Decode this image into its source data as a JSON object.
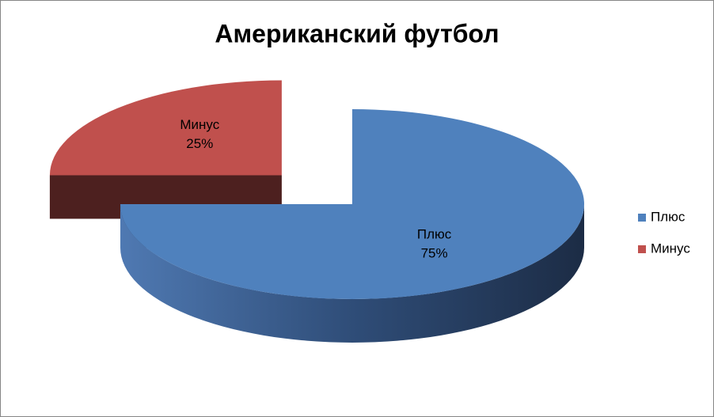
{
  "chart_data": {
    "type": "pie",
    "title": "Американский футбол",
    "categories": [
      "Плюс",
      "Минус"
    ],
    "values": [
      75,
      25
    ],
    "value_labels": [
      "75%",
      "25%"
    ],
    "colors": [
      "#4f81bd",
      "#c0504d"
    ],
    "legend": "right"
  }
}
